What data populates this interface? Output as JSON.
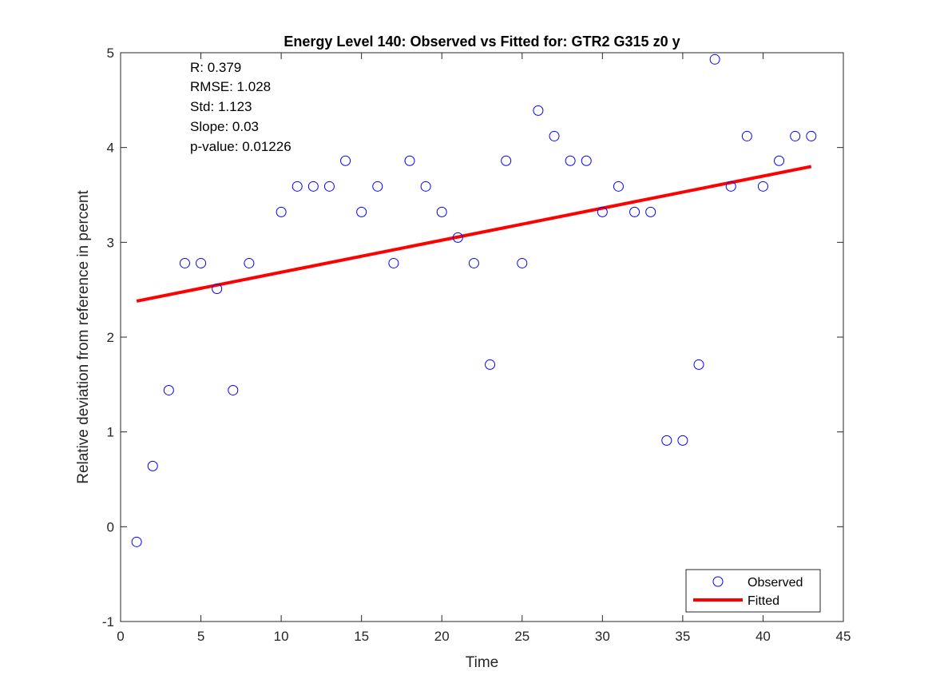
{
  "chart_data": {
    "type": "scatter",
    "title": "Energy Level 140: Observed vs Fitted for: GTR2 G315 z0 y",
    "xlabel": "Time",
    "ylabel": "Relative deviation from reference in percent",
    "xlim": [
      0,
      45
    ],
    "ylim": [
      -1,
      5
    ],
    "x_ticks": [
      "0",
      "5",
      "10",
      "15",
      "20",
      "25",
      "30",
      "35",
      "40",
      "45"
    ],
    "y_ticks": [
      "-1",
      "0",
      "1",
      "2",
      "3",
      "4",
      "5"
    ],
    "grid": false,
    "legend_position": "bottom-right",
    "stats": [
      "R: 0.379",
      "RMSE: 1.028",
      "Std: 1.123",
      "Slope: 0.03",
      "p-value: 0.01226"
    ],
    "series": [
      {
        "name": "Observed",
        "kind": "markers",
        "marker": "circle",
        "color": "#0000ff",
        "x": [
          1,
          2,
          3,
          4,
          5,
          6,
          7,
          8,
          10,
          11,
          12,
          13,
          14,
          15,
          16,
          17,
          18,
          19,
          20,
          21,
          22,
          23,
          24,
          25,
          26,
          27,
          28,
          29,
          30,
          31,
          32,
          33,
          34,
          35,
          36,
          37,
          38,
          39,
          40,
          41,
          42,
          43
        ],
        "y": [
          -0.16,
          0.64,
          1.44,
          2.78,
          2.78,
          2.51,
          1.44,
          2.78,
          3.32,
          3.59,
          3.59,
          3.59,
          3.86,
          3.32,
          3.59,
          2.78,
          3.86,
          3.59,
          3.32,
          3.05,
          2.78,
          1.71,
          3.86,
          2.78,
          4.39,
          4.12,
          3.86,
          3.86,
          3.32,
          3.59,
          3.32,
          3.32,
          0.91,
          0.91,
          1.71,
          4.93,
          3.59,
          4.12,
          3.59,
          3.86,
          4.12,
          4.12
        ]
      },
      {
        "name": "Fitted",
        "kind": "line",
        "color": "#ff0000",
        "x": [
          1,
          43
        ],
        "y": [
          2.38,
          3.8
        ]
      }
    ]
  }
}
